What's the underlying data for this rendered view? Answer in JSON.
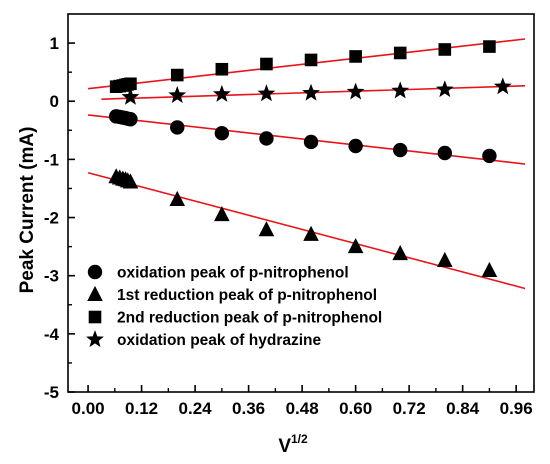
{
  "chart_data": {
    "type": "scatter",
    "title": "",
    "xlabel": "V",
    "xlabel_sup": "1/2",
    "ylabel": "Peak Current (mA)",
    "xlim": [
      -0.045,
      1.0
    ],
    "ylim": [
      -5,
      1.5
    ],
    "xticks": [
      0.0,
      0.12,
      0.24,
      0.36,
      0.48,
      0.6,
      0.72,
      0.84,
      0.96
    ],
    "xtick_labels": [
      "0.00",
      "0.12",
      "0.24",
      "0.36",
      "0.48",
      "0.60",
      "0.72",
      "0.84",
      "0.96"
    ],
    "yticks": [
      1,
      0,
      -1,
      -2,
      -3,
      -4,
      -5
    ],
    "ytick_labels": [
      "1",
      "0",
      "-1",
      "-2",
      "-3",
      "-4",
      "-5"
    ],
    "grid": false,
    "legend_position": "bottom-left",
    "fit_color": "#e8141a",
    "marker_color": "#000000",
    "series": [
      {
        "name": "oxidation peak of p-nitrophenol",
        "marker": "circle",
        "x": [
          0.063,
          0.071,
          0.078,
          0.084,
          0.089,
          0.095,
          0.2,
          0.3,
          0.4,
          0.5,
          0.6,
          0.7,
          0.8,
          0.9
        ],
        "y": [
          -0.26,
          -0.27,
          -0.28,
          -0.29,
          -0.3,
          -0.31,
          -0.45,
          -0.55,
          -0.64,
          -0.7,
          -0.77,
          -0.84,
          -0.89,
          -0.94
        ],
        "fit": {
          "x": [
            0.0,
            0.98
          ],
          "y": [
            -0.235,
            -1.08
          ]
        }
      },
      {
        "name": "1st reduction peak of p-nitrophenol",
        "marker": "triangle",
        "x": [
          0.063,
          0.071,
          0.078,
          0.084,
          0.089,
          0.095,
          0.2,
          0.3,
          0.4,
          0.5,
          0.6,
          0.7,
          0.8,
          0.9
        ],
        "y": [
          -1.3,
          -1.32,
          -1.34,
          -1.35,
          -1.37,
          -1.39,
          -1.69,
          -1.95,
          -2.21,
          -2.29,
          -2.5,
          -2.62,
          -2.74,
          -2.91
        ],
        "fit": {
          "x": [
            0.0,
            0.98
          ],
          "y": [
            -1.23,
            -3.22
          ]
        }
      },
      {
        "name": "2nd reduction peak of p-nitrophenol",
        "marker": "square",
        "x": [
          0.063,
          0.071,
          0.078,
          0.084,
          0.089,
          0.095,
          0.2,
          0.3,
          0.4,
          0.5,
          0.6,
          0.7,
          0.8,
          0.9
        ],
        "y": [
          0.25,
          0.26,
          0.27,
          0.28,
          0.29,
          0.3,
          0.45,
          0.55,
          0.64,
          0.71,
          0.77,
          0.83,
          0.89,
          0.94
        ],
        "fit": {
          "x": [
            0.0,
            0.98
          ],
          "y": [
            0.215,
            1.07
          ]
        }
      },
      {
        "name": "oxidation peak of hydrazine",
        "marker": "star",
        "x": [
          0.095,
          0.2,
          0.3,
          0.4,
          0.5,
          0.6,
          0.7,
          0.8,
          0.93
        ],
        "y": [
          0.07,
          0.1,
          0.12,
          0.13,
          0.14,
          0.16,
          0.18,
          0.2,
          0.25
        ],
        "fit": {
          "x": [
            0.03,
            0.98
          ],
          "y": [
            0.035,
            0.265
          ]
        }
      }
    ]
  }
}
